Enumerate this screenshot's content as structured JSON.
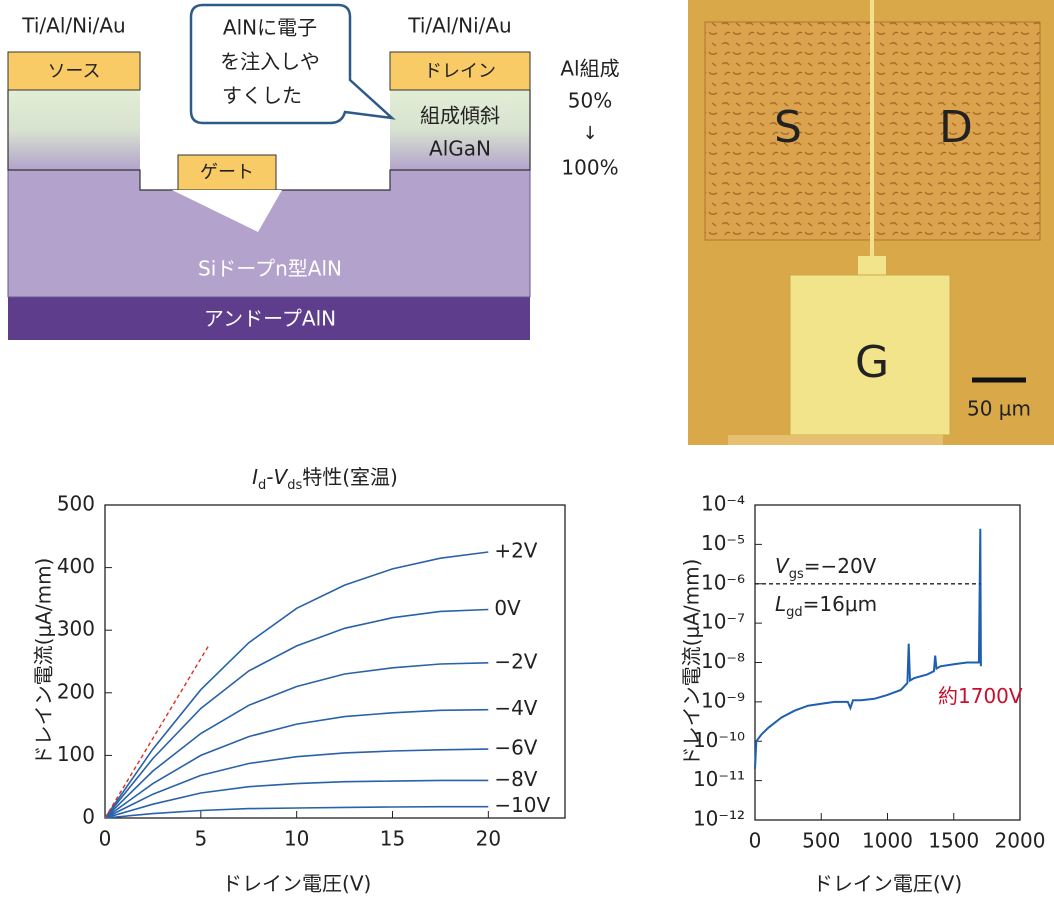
{
  "diagram": {
    "source_metal": "Ti/Al/Ni/Au",
    "source": "ソース",
    "drain_metal": "Ti/Al/Ni/Au",
    "drain": "ドレイン",
    "callout": [
      "AlNに電子",
      "を注入しや",
      "すくした"
    ],
    "gate": "ゲート",
    "graded_layer": [
      "組成傾斜",
      "AlGaN"
    ],
    "composition": [
      "Al組成",
      "50%",
      "↓",
      "100%"
    ],
    "doped_layer": "Siドープn型AlN",
    "undoped_layer": "アンドープAlN"
  },
  "micrograph": {
    "source": "S",
    "drain": "D",
    "gate": "G",
    "scale": "50 µm"
  },
  "chart_data": [
    {
      "type": "line",
      "title": [
        {
          "text": "I",
          "italic": true
        },
        {
          "text": "d",
          "sub": true
        },
        {
          "text": "-"
        },
        {
          "text": "V",
          "italic": true
        },
        {
          "text": "ds",
          "sub": true
        },
        {
          "text": "特性(室温)"
        }
      ],
      "x_label": "ドレイン電圧(V)",
      "y_label": "ドレイン電流(μA/mm)",
      "x": [
        0,
        2.5,
        5,
        7.5,
        10,
        12.5,
        15,
        17.5,
        20
      ],
      "series": [
        {
          "name": "+2V",
          "color": "#2a62a8",
          "values": [
            0,
            110,
            205,
            280,
            335,
            372,
            398,
            415,
            425
          ]
        },
        {
          "name": "0V",
          "color": "#2a62a8",
          "values": [
            0,
            95,
            175,
            235,
            275,
            303,
            320,
            330,
            333
          ]
        },
        {
          "name": "−2V",
          "color": "#2a62a8",
          "values": [
            0,
            75,
            135,
            180,
            210,
            230,
            240,
            246,
            248
          ]
        },
        {
          "name": "−4V",
          "color": "#2a62a8",
          "values": [
            0,
            55,
            100,
            130,
            150,
            162,
            168,
            172,
            173
          ]
        },
        {
          "name": "−6V",
          "color": "#2a62a8",
          "values": [
            0,
            38,
            68,
            87,
            98,
            104,
            107,
            109,
            110
          ]
        },
        {
          "name": "−8V",
          "color": "#2a62a8",
          "values": [
            0,
            22,
            40,
            50,
            55,
            58,
            59,
            60,
            60
          ]
        },
        {
          "name": "−10V",
          "color": "#2a62a8",
          "values": [
            0,
            7,
            12,
            15,
            16,
            17,
            17.5,
            18,
            18
          ]
        }
      ],
      "reference_line": {
        "x": [
          0,
          5.4
        ],
        "values": [
          0,
          275
        ],
        "color": "#e03020"
      },
      "end_labels": true,
      "xlim": [
        0,
        24
      ],
      "xticks": [
        0,
        5,
        10,
        15,
        20
      ],
      "ylim": [
        0,
        500
      ],
      "yticks": [
        0,
        100,
        200,
        300,
        400,
        500
      ]
    },
    {
      "type": "line",
      "log_y": true,
      "x_label": "ドレイン電圧(V)",
      "y_label": "ドレイン電流(μA/mm)",
      "series": [
        {
          "color": "#1f5fb0",
          "x": [
            0,
            10,
            50,
            100,
            200,
            300,
            400,
            500,
            600,
            700,
            720,
            740,
            800,
            900,
            1000,
            1100,
            1150,
            1160,
            1170,
            1200,
            1300,
            1350,
            1360,
            1370,
            1400,
            1500,
            1600,
            1690,
            1700,
            1705
          ],
          "values": [
            2e-11,
            1e-10,
            1.5e-10,
            2.2e-10,
            4e-10,
            6e-10,
            8e-10,
            9e-10,
            1e-09,
            1e-09,
            7e-10,
            1.1e-09,
            1.1e-09,
            1.2e-09,
            1.5e-09,
            2e-09,
            3e-09,
            3e-08,
            3.5e-09,
            4e-09,
            5e-09,
            6e-09,
            1.5e-08,
            7e-09,
            8e-09,
            9e-09,
            1e-08,
            1e-08,
            2.5e-05,
            8e-09
          ]
        }
      ],
      "reference_line": {
        "x": [
          0,
          1700
        ],
        "values": [
          1e-06,
          1e-06
        ],
        "color": "#222222"
      },
      "annotations": [
        {
          "parts": [
            {
              "text": "V",
              "italic": true
            },
            {
              "text": "gs",
              "sub": true
            },
            {
              "text": "=−20V"
            }
          ]
        },
        {
          "parts": [
            {
              "text": "L",
              "italic": true
            },
            {
              "text": "gd",
              "sub": true
            },
            {
              "text": "=16μm"
            }
          ]
        },
        {
          "parts": [
            {
              "text": "約1700V"
            }
          ],
          "color": "#c8102e"
        }
      ],
      "xlim": [
        0,
        2000
      ],
      "xticks": [
        0,
        500,
        1000,
        1500,
        2000
      ],
      "ylim": [
        1e-12,
        0.0001
      ],
      "yticks": [
        {
          "value": 1e-12,
          "label": "10⁻¹²"
        },
        {
          "value": 1e-11,
          "label": "10⁻¹¹"
        },
        {
          "value": 1e-10,
          "label": "10⁻¹⁰"
        },
        {
          "value": 1e-09,
          "label": "10⁻⁹"
        },
        {
          "value": 1e-08,
          "label": "10⁻⁸"
        },
        {
          "value": 1e-07,
          "label": "10⁻⁷"
        },
        {
          "value": 1e-06,
          "label": "10⁻⁶"
        },
        {
          "value": 1e-05,
          "label": "10⁻⁵"
        },
        {
          "value": 0.0001,
          "label": "10⁻⁴"
        }
      ]
    }
  ]
}
